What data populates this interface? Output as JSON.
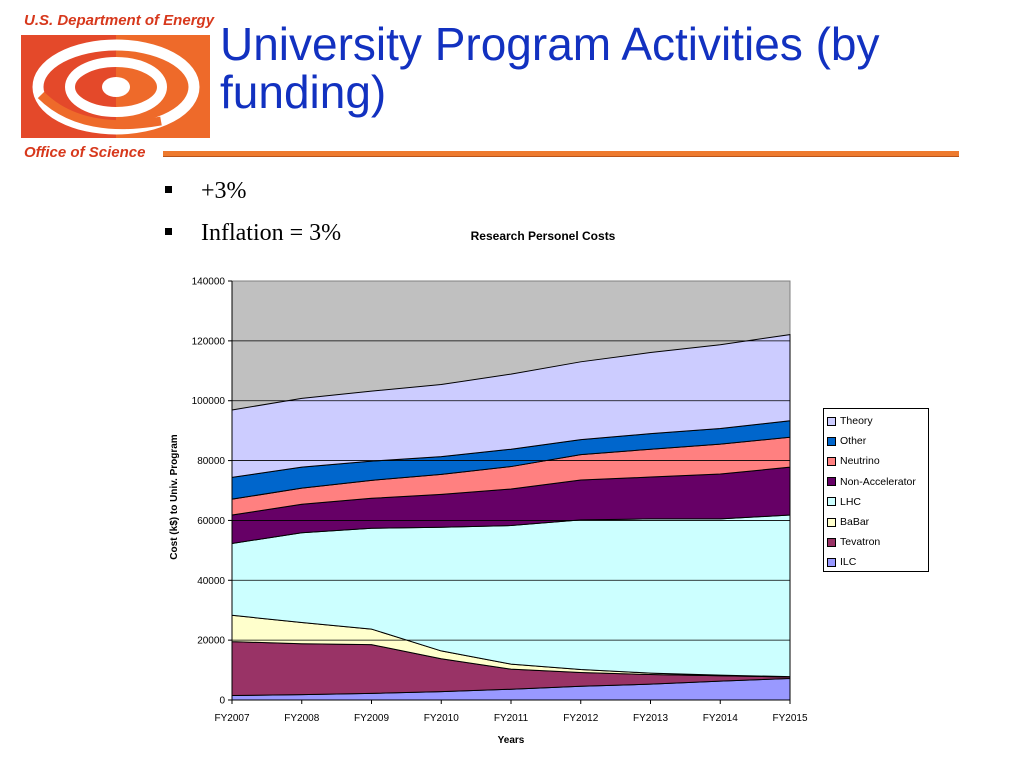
{
  "header": {
    "agency": "U.S. Department of Energy",
    "office": "Office of Science",
    "title": "University Program Activities (by funding)"
  },
  "bullets": [
    "+3%",
    "Inflation = 3%"
  ],
  "colors": {
    "title": "#1231c0",
    "accent_rule": "#ee7a2e",
    "logo_orange": "#ee6a2a",
    "logo_red": "#d7381c",
    "plot_background": "#c0c0c0"
  },
  "chart_data": {
    "type": "area",
    "stacked": true,
    "title": "Research Personel Costs",
    "xlabel": "Years",
    "ylabel": "Cost (k$) to Univ. Program",
    "ylim": [
      0,
      140000
    ],
    "yticks": [
      "0",
      "20000",
      "40000",
      "60000",
      "80000",
      "100000",
      "120000",
      "140000"
    ],
    "categories": [
      "FY2007",
      "FY2008",
      "FY2009",
      "FY2010",
      "FY2011",
      "FY2012",
      "FY2013",
      "FY2014",
      "FY2015"
    ],
    "grid": true,
    "legend_position": "right",
    "series": [
      {
        "name": "ILC",
        "color": "#9999ff",
        "values": [
          1500,
          1800,
          2200,
          2800,
          3600,
          4600,
          5300,
          6300,
          7200
        ]
      },
      {
        "name": "Tevatron",
        "color": "#993366",
        "values": [
          18000,
          17000,
          16300,
          11000,
          6700,
          4600,
          3200,
          1800,
          500
        ]
      },
      {
        "name": "BaBar",
        "color": "#ffffcc",
        "values": [
          8800,
          7100,
          5200,
          2600,
          1700,
          1000,
          500,
          200,
          100
        ]
      },
      {
        "name": "LHC",
        "color": "#ccffff",
        "values": [
          24000,
          30000,
          33700,
          41300,
          46300,
          50000,
          51500,
          52200,
          54000
        ]
      },
      {
        "name": "Non-Accelerator",
        "color": "#660066",
        "values": [
          9500,
          9500,
          10000,
          11000,
          12200,
          13300,
          14000,
          15000,
          16000
        ]
      },
      {
        "name": "Neutrino",
        "color": "#ff8080",
        "values": [
          5300,
          5400,
          6000,
          6700,
          7500,
          8500,
          9300,
          10000,
          10000
        ]
      },
      {
        "name": "Other",
        "color": "#0066cc",
        "values": [
          7300,
          7000,
          6400,
          5900,
          5800,
          5000,
          5200,
          5200,
          5500
        ]
      },
      {
        "name": "Theory",
        "color": "#ccccff",
        "values": [
          22500,
          23000,
          23400,
          24100,
          25100,
          26000,
          27100,
          28000,
          28800
        ]
      }
    ]
  }
}
